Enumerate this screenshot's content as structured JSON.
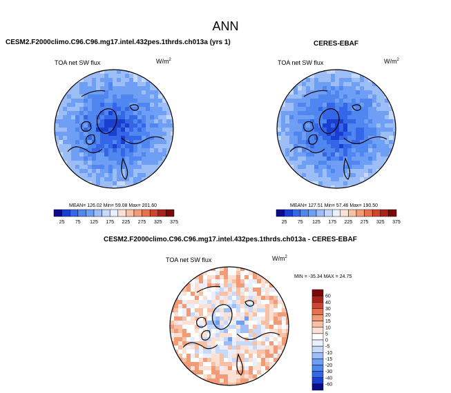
{
  "page_title": "ANN",
  "panels": [
    {
      "case_title": "CESM2.F2000climo.C96.C96.mg17.intel.432pes.1thrds.ch013a (yrs 1)",
      "variable": "TOA net SW flux",
      "units": "W/m",
      "units_sup": "2",
      "stats_text": "MEAN= 126.02  Min= 59.08  Max= 201.60"
    },
    {
      "case_title": "CERES-EBAF",
      "variable": "TOA net SW flux",
      "units": "W/m",
      "units_sup": "2",
      "stats_text": "MEAN= 127.51  Min= 57.46  Max= 190.50"
    },
    {
      "case_title": "CESM2.F2000climo.C96.C96.mg17.intel.432pes.1thrds.ch013a - CERES-EBAF",
      "variable": "TOA net SW flux",
      "units": "W/m",
      "units_sup": "2",
      "stats_text": "MIN = -35.34  MAX = 24.75"
    }
  ],
  "chart_data": [
    {
      "type": "heatmap",
      "projection": "north polar stereographic",
      "variable": "TOA net SW flux",
      "units": "W/m2",
      "summary": {
        "mean": 126.02,
        "min": 59.08,
        "max": 201.6
      },
      "colorbar": {
        "orientation": "horizontal",
        "levels": [
          25,
          50,
          75,
          100,
          125,
          150,
          175,
          200,
          225,
          250,
          275,
          300,
          325,
          350,
          375
        ],
        "tick_labels": [
          "25",
          "75",
          "125",
          "175",
          "225",
          "275",
          "325",
          "375"
        ],
        "colors": [
          "#0b0b8c",
          "#1a3fd0",
          "#3566e8",
          "#4f86ef",
          "#6e9ff4",
          "#9dbdf7",
          "#c7d9fa",
          "#e9effc",
          "#fbe0d3",
          "#f8c0a4",
          "#f19c76",
          "#e57151",
          "#cf4431",
          "#a9231b",
          "#7a0a0a"
        ]
      }
    },
    {
      "type": "heatmap",
      "projection": "north polar stereographic",
      "variable": "TOA net SW flux",
      "units": "W/m2",
      "summary": {
        "mean": 127.51,
        "min": 57.46,
        "max": 190.5
      },
      "colorbar": {
        "orientation": "horizontal",
        "levels": [
          25,
          50,
          75,
          100,
          125,
          150,
          175,
          200,
          225,
          250,
          275,
          300,
          325,
          350,
          375
        ],
        "tick_labels": [
          "25",
          "75",
          "125",
          "175",
          "225",
          "275",
          "325",
          "375"
        ],
        "colors": [
          "#0b0b8c",
          "#1a3fd0",
          "#3566e8",
          "#4f86ef",
          "#6e9ff4",
          "#9dbdf7",
          "#c7d9fa",
          "#e9effc",
          "#fbe0d3",
          "#f8c0a4",
          "#f19c76",
          "#e57151",
          "#cf4431",
          "#a9231b",
          "#7a0a0a"
        ]
      }
    },
    {
      "type": "heatmap",
      "projection": "north polar stereographic",
      "variable": "TOA net SW flux",
      "units": "W/m2",
      "summary": {
        "min": -35.34,
        "max": 24.75
      },
      "colorbar": {
        "orientation": "vertical",
        "levels": [
          60,
          40,
          30,
          20,
          15,
          10,
          5,
          0,
          -5,
          -10,
          -15,
          -20,
          -30,
          -40,
          -60
        ],
        "tick_labels": [
          "60",
          "40",
          "30",
          "20",
          "15",
          "10",
          "5",
          "0",
          "-5",
          "-10",
          "-15",
          "-20",
          "-30",
          "-40",
          "-60"
        ],
        "colors": [
          "#7a0a0a",
          "#a9231b",
          "#cf4431",
          "#e57151",
          "#f19c76",
          "#f8c0a4",
          "#fbe0d3",
          "#ffffff",
          "#e9effc",
          "#c7d9fa",
          "#9dbdf7",
          "#6e9ff4",
          "#4f86ef",
          "#3566e8",
          "#1a3fd0",
          "#0b0b8c"
        ]
      }
    }
  ]
}
